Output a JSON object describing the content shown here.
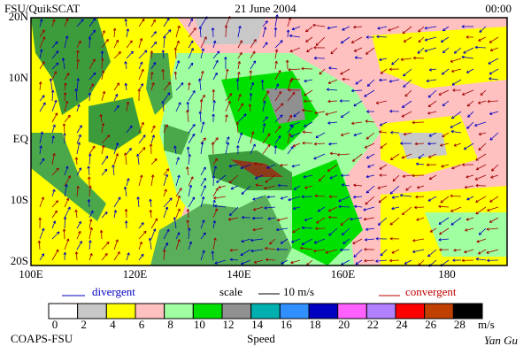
{
  "header": {
    "left": "FSU/QuikSCAT",
    "center": "21 June 2004",
    "right": "00:00"
  },
  "map": {
    "lat_labels": [
      "20N",
      "10N",
      "EQ",
      "10S",
      "20S"
    ],
    "lon_labels": [
      "100E",
      "120E",
      "140E",
      "160E",
      "180"
    ]
  },
  "legend": {
    "divergent": "divergent",
    "scale": "scale",
    "scale_value": "10 m/s",
    "convergent": "convergent"
  },
  "colorbar": {
    "ticks": [
      0,
      2,
      4,
      6,
      8,
      10,
      12,
      14,
      16,
      18,
      20,
      22,
      24,
      26,
      28
    ],
    "unit": "m/s",
    "label": "Speed",
    "colors": [
      "#ffffff",
      "#c8c8c8",
      "#ffff00",
      "#ffc0c0",
      "#a0ffa0",
      "#00e000",
      "#909090",
      "#00b0b0",
      "#3090ff",
      "#0000c0",
      "#ff60ff",
      "#b080ff",
      "#ff0000",
      "#c04000",
      "#000000"
    ]
  },
  "footer": {
    "left": "COAPS-FSU",
    "right": "Yan Gu"
  }
}
